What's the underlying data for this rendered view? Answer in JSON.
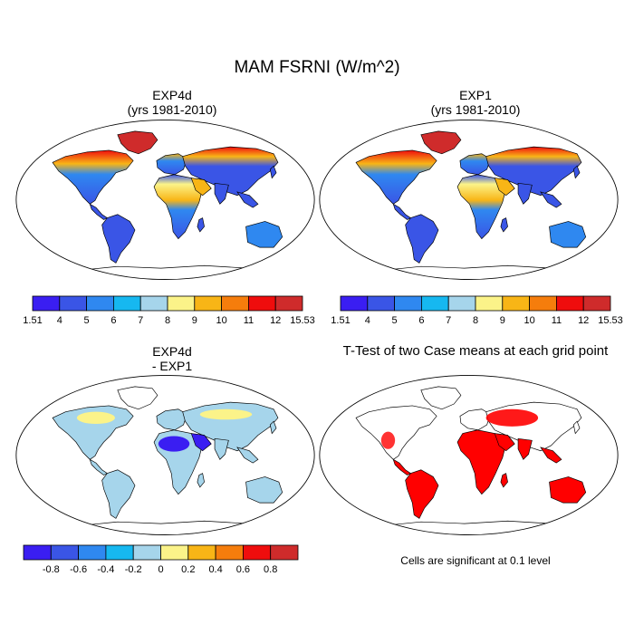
{
  "main_title": "MAM FSRNI (W/m^2)",
  "panels": [
    {
      "id": "exp4d",
      "title_line1": "EXP4d",
      "title_line2": "(yrs 1981-2010)"
    },
    {
      "id": "exp1",
      "title_line1": "EXP1",
      "title_line2": "(yrs 1981-2010)"
    },
    {
      "id": "diff",
      "title_line1": "EXP4d",
      "title_line2": "- EXP1"
    },
    {
      "id": "ttest",
      "title_line1": "T-Test of two Case means at each grid point",
      "title_line2": ""
    }
  ],
  "colorbars": {
    "absolute": {
      "colors": [
        "#3a1ef2",
        "#3a55e6",
        "#2f88f0",
        "#16b8f0",
        "#a6d5eb",
        "#fbf389",
        "#f8b516",
        "#f57d0c",
        "#ef0d0d",
        "#cf2b2b"
      ],
      "labels": [
        "1.51",
        "4",
        "5",
        "6",
        "7",
        "8",
        "9",
        "10",
        "11",
        "12",
        "15.53"
      ]
    },
    "difference": {
      "colors": [
        "#3a1ef2",
        "#3a55e6",
        "#2f88f0",
        "#16b8f0",
        "#a6d5eb",
        "#fbf389",
        "#f8b516",
        "#f57d0c",
        "#ef0d0d",
        "#cf2b2b"
      ],
      "labels": [
        "",
        "-0.8",
        "-0.6",
        "-0.4",
        "-0.2",
        "0",
        "0.2",
        "0.4",
        "0.6",
        "0.8",
        ""
      ]
    }
  },
  "significance_note": "Cells are significant at 0.1 level",
  "colors": {
    "ocean": "#ffffff",
    "coast": "#000000",
    "significant": "#ff0000"
  }
}
